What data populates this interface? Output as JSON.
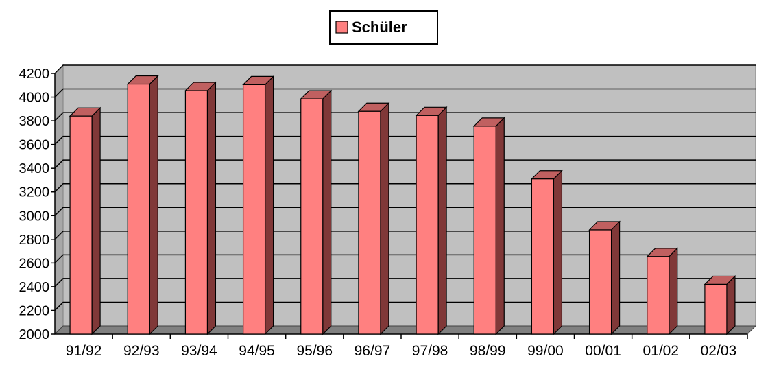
{
  "chart_data": {
    "type": "bar",
    "style": "3d-column",
    "categories": [
      "91/92",
      "92/93",
      "93/94",
      "94/95",
      "95/96",
      "96/97",
      "97/98",
      "98/99",
      "99/00",
      "00/01",
      "01/02",
      "02/03"
    ],
    "series": [
      {
        "name": "Schüler",
        "values": [
          3840,
          4110,
          4055,
          4105,
          3985,
          3880,
          3845,
          3755,
          3310,
          2880,
          2655,
          2420
        ]
      }
    ],
    "ylim": [
      2000,
      4200
    ],
    "yticks": [
      2000,
      2200,
      2400,
      2600,
      2800,
      3000,
      3200,
      3400,
      3600,
      3800,
      4000,
      4200
    ],
    "grid": true,
    "legend_position": "top-center",
    "colors": {
      "bar_front": "#ff8080",
      "bar_side": "#803838",
      "bar_top": "#c06060",
      "wall": "#c0c0c0",
      "floor": "#808080",
      "gridline": "#000000"
    }
  }
}
